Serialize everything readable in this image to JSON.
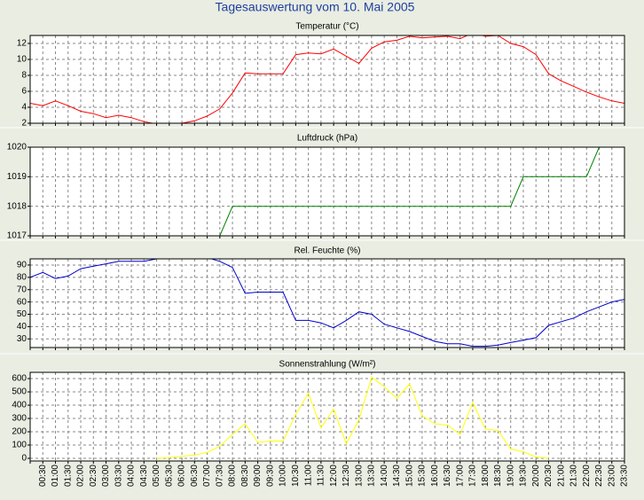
{
  "title": "Tagesauswertung vom 10. Mai 2005",
  "chart_data": [
    {
      "type": "line",
      "title": "Temperatur (°C)",
      "color": "#ff0000",
      "grid": true,
      "ylim": [
        2,
        13
      ],
      "yticks": [
        2,
        4,
        6,
        8,
        10,
        12
      ],
      "values": [
        4.5,
        4.2,
        4.8,
        4.2,
        3.5,
        3.2,
        2.7,
        3.0,
        2.7,
        2.2,
        1.9,
        1.8,
        2.0,
        2.3,
        2.9,
        3.8,
        5.8,
        8.3,
        8.2,
        8.2,
        8.2,
        10.6,
        10.8,
        10.7,
        11.3,
        10.4,
        9.5,
        11.4,
        12.2,
        12.4,
        12.9,
        12.7,
        12.8,
        12.9,
        12.6,
        13.3,
        12.9,
        13.0,
        12.0,
        11.6,
        10.6,
        8.2,
        7.3,
        6.6,
        5.9,
        5.3,
        4.8,
        4.5
      ]
    },
    {
      "type": "line",
      "title": "Luftdruck (hPa)",
      "color": "#008000",
      "grid": true,
      "ylim": [
        1017,
        1020
      ],
      "yticks": [
        1017,
        1018,
        1019,
        1020
      ],
      "values": [
        1017,
        1017,
        1017,
        1017,
        1017,
        1017,
        1017,
        1017,
        1017,
        1017,
        1017,
        1017,
        1017,
        1017,
        1017,
        1017,
        1018,
        1018,
        1018,
        1018,
        1018,
        1018,
        1018,
        1018,
        1018,
        1018,
        1018,
        1018,
        1018,
        1018,
        1018,
        1018,
        1018,
        1018,
        1018,
        1018,
        1018,
        1018,
        1018,
        1019,
        1019,
        1019,
        1019,
        1019,
        1019,
        1020,
        1020,
        1020
      ]
    },
    {
      "type": "line",
      "title": "Rel. Feuchte (%)",
      "color": "#0000cc",
      "grid": true,
      "ylim": [
        23,
        95
      ],
      "yticks": [
        30,
        40,
        50,
        60,
        70,
        80,
        90
      ],
      "values": [
        80,
        84,
        79,
        81,
        87,
        89,
        91,
        93,
        93,
        93,
        95,
        96,
        96,
        96,
        96,
        93,
        88,
        67,
        68,
        68,
        68,
        45,
        45,
        43,
        39,
        45,
        52,
        50,
        42,
        39,
        36,
        32,
        28,
        26,
        26,
        24,
        24,
        25,
        27,
        29,
        31,
        41,
        44,
        47,
        52,
        56,
        60,
        62
      ]
    },
    {
      "type": "line",
      "title": "Sonnenstrahlung (W/m²)",
      "color": "#ffff00",
      "grid": true,
      "ylim": [
        -20,
        647
      ],
      "yticks": [
        0,
        100,
        200,
        300,
        400,
        500,
        600
      ],
      "categories": [
        null,
        "00:30",
        "01:00",
        "01:30",
        "02:00",
        "02:30",
        "03:00",
        "03:30",
        "04:00",
        "04:30",
        "05:00",
        "05:30",
        "06:00",
        "06:30",
        "07:00",
        "07:30",
        "08:00",
        "08:30",
        "09:00",
        "09:30",
        "10:00",
        "10:30",
        "11:00",
        "11:30",
        "12:00",
        "12:30",
        "13:00",
        "13:30",
        "14:00",
        "14:30",
        "15:00",
        "15:30",
        "16:00",
        "16:30",
        "17:00",
        "17:30",
        "18:00",
        "18:30",
        "19:00",
        "19:30",
        "20:00",
        "20:30",
        "21:00",
        "21:30",
        "22:00",
        "22:30",
        "23:00",
        "23:30"
      ],
      "values": [
        null,
        null,
        null,
        null,
        null,
        null,
        null,
        null,
        null,
        null,
        0,
        5,
        15,
        25,
        45,
        90,
        180,
        260,
        120,
        130,
        130,
        330,
        490,
        230,
        370,
        110,
        290,
        610,
        540,
        450,
        560,
        320,
        260,
        250,
        180,
        420,
        220,
        210,
        70,
        50,
        10,
        0,
        null,
        null,
        null,
        null,
        null,
        null
      ]
    }
  ]
}
